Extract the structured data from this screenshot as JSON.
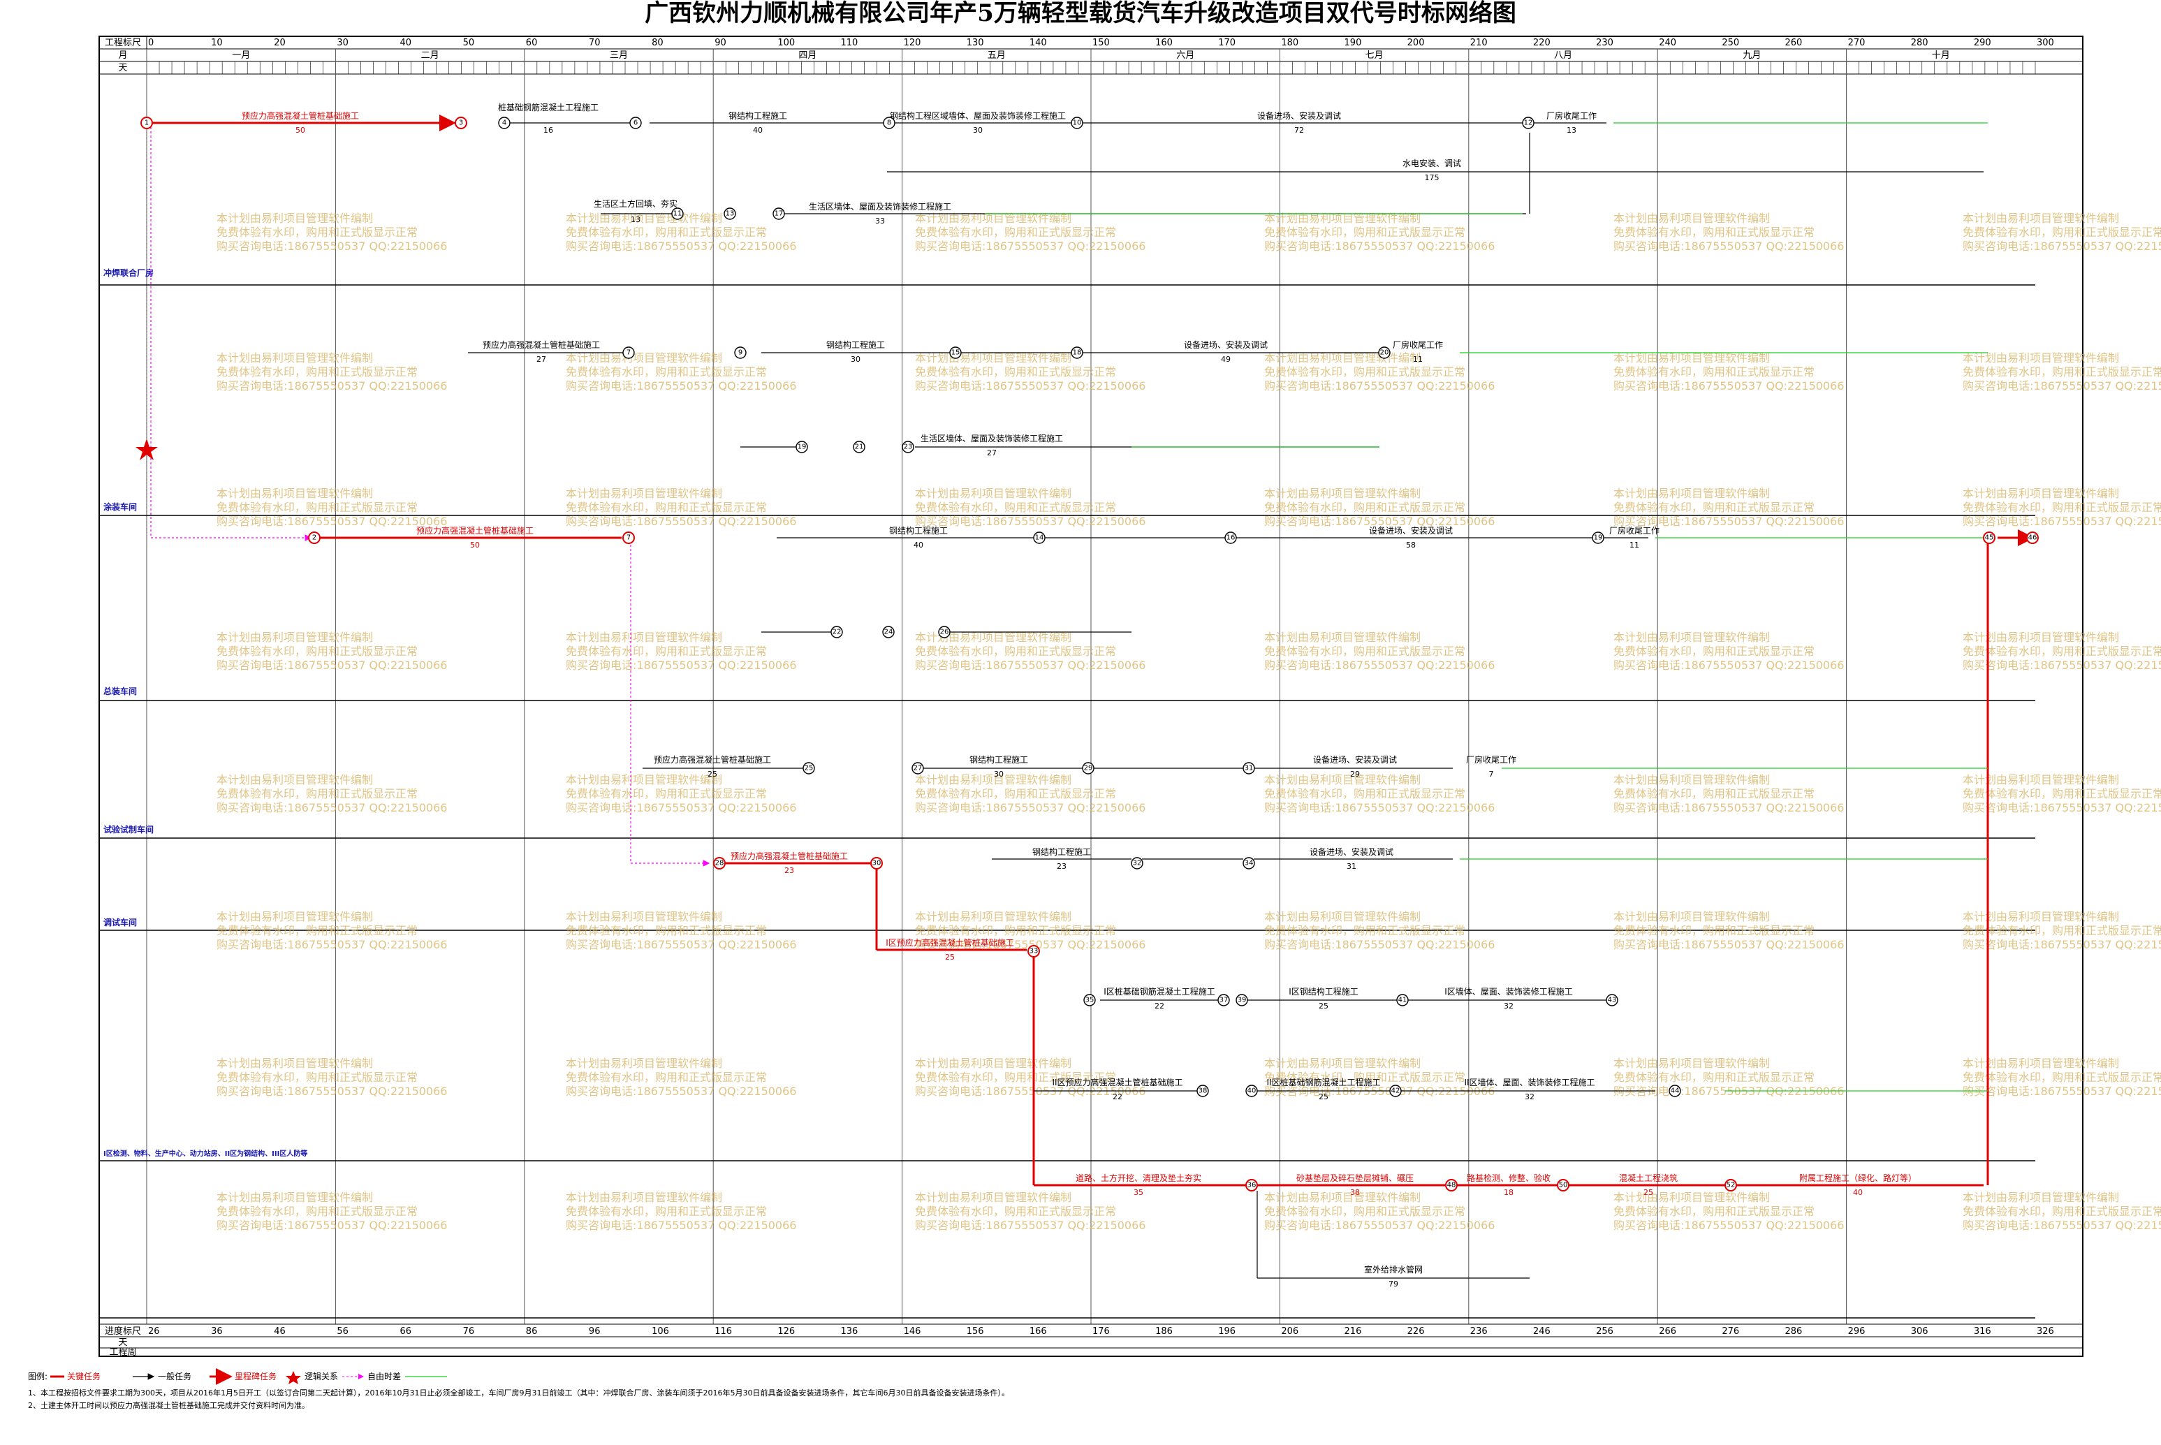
{
  "title": "广西钦州力顺机械有限公司年产5万辆轻型载货汽车升级改造项目双代号时标网络图",
  "header": {
    "row1_label": "工程标尺",
    "row2_label": "月",
    "row3_label": "天",
    "footer_row1_label": "进度标尺",
    "footer_row2_label": "天",
    "footer_row3_label": "工程周",
    "months": [
      "一月",
      "二月",
      "三月",
      "四月",
      "五月",
      "六月",
      "七月",
      "八月",
      "九月",
      "十月"
    ],
    "scale_ticks": [
      "0",
      "10",
      "20",
      "30",
      "40",
      "50",
      "60",
      "70",
      "80",
      "90",
      "100",
      "110",
      "120",
      "130",
      "140",
      "150",
      "160",
      "170",
      "180",
      "190",
      "200",
      "210",
      "220",
      "230",
      "240",
      "250",
      "260",
      "270",
      "280",
      "290",
      "300"
    ],
    "footer_ticks": [
      "26",
      "36",
      "46",
      "56",
      "66",
      "76",
      "86",
      "96",
      "106",
      "116",
      "126",
      "136",
      "146",
      "156",
      "166",
      "176",
      "186",
      "196",
      "206",
      "216",
      "226",
      "236",
      "246",
      "256",
      "266",
      "276",
      "286",
      "296",
      "306",
      "316",
      "326"
    ]
  },
  "zones": [
    {
      "name": "冲焊联合厂房"
    },
    {
      "name": "涂装车间"
    },
    {
      "name": "总装车间"
    },
    {
      "name": "试验试制车间"
    },
    {
      "name": "调试车间"
    },
    {
      "name": "I区检测、物料、生产中心、动力站房、II区为钢结构、III区人防等"
    },
    {
      "name": ""
    }
  ],
  "tasks": {
    "t1": {
      "label": "预应力高强混凝土管桩基础施工",
      "dur": "50"
    },
    "t2": {
      "label": "桩基础钢筋混凝土工程施工",
      "dur": "16"
    },
    "t3": {
      "label": "钢结构工程施工",
      "dur": "40"
    },
    "t4": {
      "label": "钢结构工程区域墙体、屋面及装饰装修工程施工",
      "dur": "30"
    },
    "t5": {
      "label": "设备进场、安装及调试",
      "dur": "72"
    },
    "t6": {
      "label": "厂房收尾工作",
      "dur": "13"
    },
    "t7": {
      "label": "水电安装、调试",
      "dur": "175"
    },
    "t8": {
      "label": "生活区土方回填、夯实",
      "dur": "13"
    },
    "t9": {
      "label": "生活区墙体、屋面及装饰装修工程施工",
      "dur": "33"
    },
    "t10": {
      "label": "预应力高强混凝土管桩基础施工",
      "dur": "27"
    },
    "t11": {
      "label": "钢结构工程施工",
      "dur": "30"
    },
    "t12": {
      "label": "设备进场、安装及调试",
      "dur": "49"
    },
    "t13": {
      "label": "厂房收尾工作",
      "dur": "11"
    },
    "t14": {
      "label": "生活区墙体、屋面及装饰装修工程施工",
      "dur": "27"
    },
    "t15": {
      "label": "预应力高强混凝土管桩基础施工",
      "dur": "50"
    },
    "t16": {
      "label": "钢结构工程施工",
      "dur": "40"
    },
    "t17": {
      "label": "设备进场、安装及调试",
      "dur": "58"
    },
    "t18": {
      "label": "厂房收尾工作",
      "dur": "11"
    },
    "t19": {
      "label": "预应力高强混凝土管桩基础施工",
      "dur": "25"
    },
    "t20": {
      "label": "钢结构工程施工",
      "dur": "30"
    },
    "t21": {
      "label": "设备进场、安装及调试",
      "dur": "29"
    },
    "t22": {
      "label": "厂房收尾工作",
      "dur": "7"
    },
    "t23": {
      "label": "预应力高强混凝土管桩基础施工",
      "dur": "23"
    },
    "t24": {
      "label": "钢结构工程施工",
      "dur": "23"
    },
    "t25": {
      "label": "设备进场、安装及调试",
      "dur": "31"
    },
    "t26": {
      "label": "I区预应力高强混凝土管桩基础施工",
      "dur": "25"
    },
    "t27": {
      "label": "I区桩基础钢筋混凝土工程施工",
      "dur": "22"
    },
    "t28": {
      "label": "I区钢结构工程施工",
      "dur": "25"
    },
    "t29": {
      "label": "I区墙体、屋面、装饰装修工程施工",
      "dur": "32"
    },
    "t30": {
      "label": "II区预应力高强混凝土管桩基础施工",
      "dur": "22"
    },
    "t31": {
      "label": "II区桩基础钢筋混凝土工程施工",
      "dur": "25"
    },
    "t32": {
      "label": "II区墙体、屋面、装饰装修工程施工",
      "dur": "32"
    },
    "t33": {
      "label": "道路、土方开挖、清理及垫土夯实",
      "dur": "35"
    },
    "t34": {
      "label": "砂基垫层及碎石垫层摊铺、碾压",
      "dur": "38"
    },
    "t35": {
      "label": "路基检测、修整、验收",
      "dur": "18"
    },
    "t36": {
      "label": "混凝土工程浇筑",
      "dur": "25"
    },
    "t37": {
      "label": "附属工程施工（绿化、路灯等）",
      "dur": "40"
    },
    "t38": {
      "label": "室外给排水管网",
      "dur": "79"
    }
  },
  "watermark": {
    "line1": "本计划由易利项目管理软件编制",
    "line2": "免费体验有水印，购用和正式版显示正常",
    "line3": "购买咨询电话:18675550537 QQ:22150066"
  },
  "legend": {
    "label": "图例:",
    "items": [
      {
        "text": "关键任务",
        "color": "#e00000"
      },
      {
        "text": "一般任务",
        "color": "#000000"
      },
      {
        "text": "里程碑任务",
        "color": "#e00000"
      },
      {
        "text": "逻辑关系",
        "color": "#ff00ff"
      },
      {
        "text": "自由时差",
        "color": "#22cc22"
      }
    ]
  },
  "notes": [
    "1、本工程按招标文件要求工期为300天，项目从2016年1月5日开工（以签订合同第二天起计算），2016年10月31日止必须全部竣工，车间厂房9月31日前竣工（其中：冲焊联合厂房、涂装车间须于2016年5月30日前具备设备安装进场条件，其它车间6月30日前具备设备安装进场条件）。",
    "2、土建主体开工时间以预应力高强混凝土管桩基础施工完成并交付资料时间为准。"
  ]
}
